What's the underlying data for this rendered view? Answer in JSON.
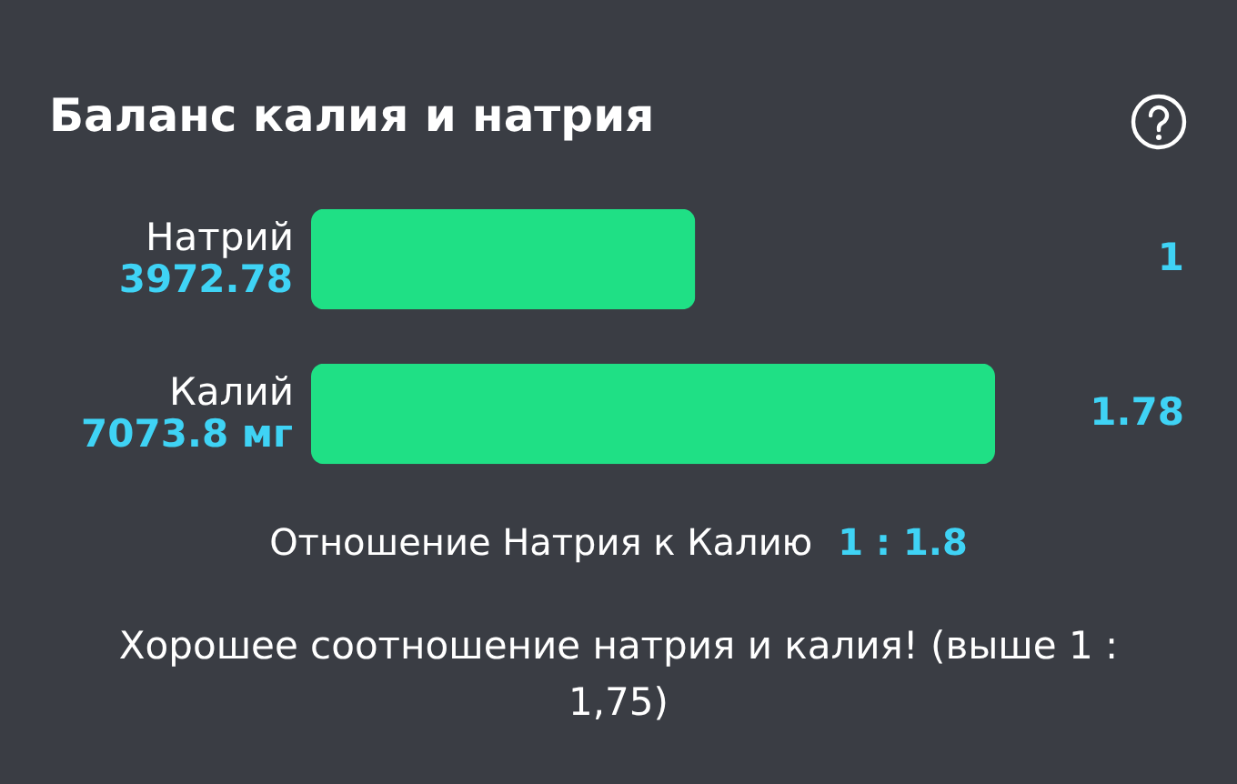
{
  "chart_data": {
    "type": "bar",
    "orientation": "horizontal",
    "title": "Баланс калия и натрия",
    "categories": [
      "Натрий",
      "Калий"
    ],
    "values": [
      3972.78,
      7073.8
    ],
    "value_labels": [
      "3972.78",
      "7073.8 мг"
    ],
    "color": "#1fe085",
    "xlim": [
      0,
      7073.8
    ],
    "tick_labels": "y",
    "annotations": [
      "1",
      "1.78",
      "Отношение Натрия к Калию",
      "1 : 1.8",
      "Хорошее соотношение натрия и калия! (выше 1 : 1,75)"
    ]
  }
}
